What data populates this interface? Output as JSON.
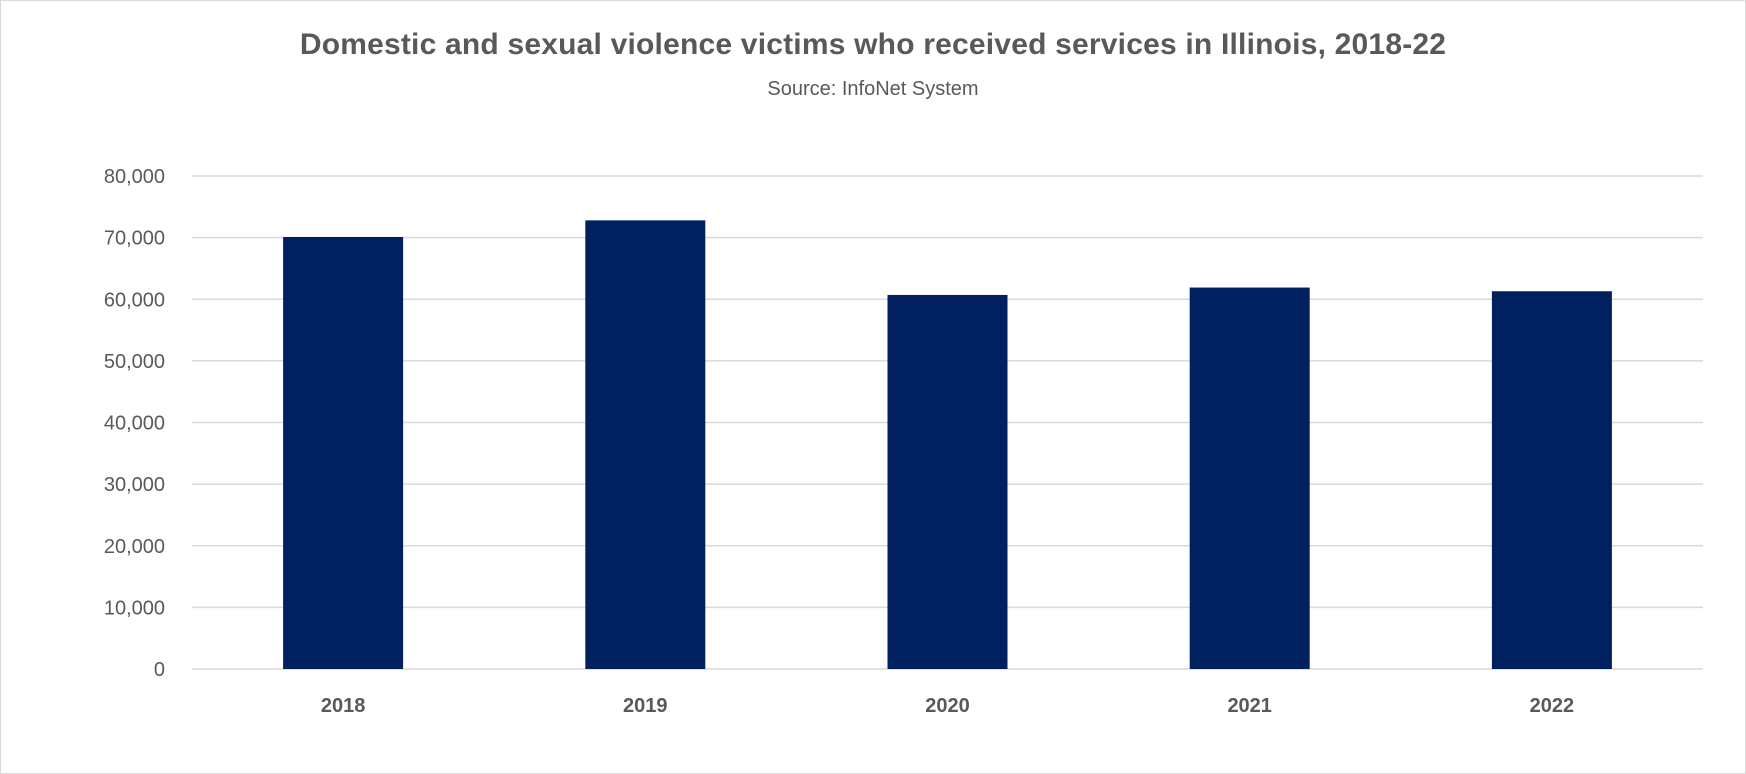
{
  "chart_data": {
    "type": "bar",
    "title": "Domestic and sexual violence victims who received services in Illinois, 2018-22",
    "subtitle": "Source: InfoNet System",
    "categories": [
      "2018",
      "2019",
      "2020",
      "2021",
      "2022"
    ],
    "values": [
      70100,
      72800,
      60700,
      61900,
      61300
    ],
    "ylim": [
      0,
      80000
    ],
    "yticks": [
      0,
      10000,
      20000,
      30000,
      40000,
      50000,
      60000,
      70000,
      80000
    ],
    "ytick_labels": [
      "0",
      "10,000",
      "20,000",
      "30,000",
      "40,000",
      "50,000",
      "60,000",
      "70,000",
      "80,000"
    ],
    "xlabel": "",
    "ylabel": "",
    "grid": true,
    "legend": "none",
    "colors": {
      "bar": "#002060",
      "grid": "#d9d9d9",
      "text": "#595959"
    }
  }
}
